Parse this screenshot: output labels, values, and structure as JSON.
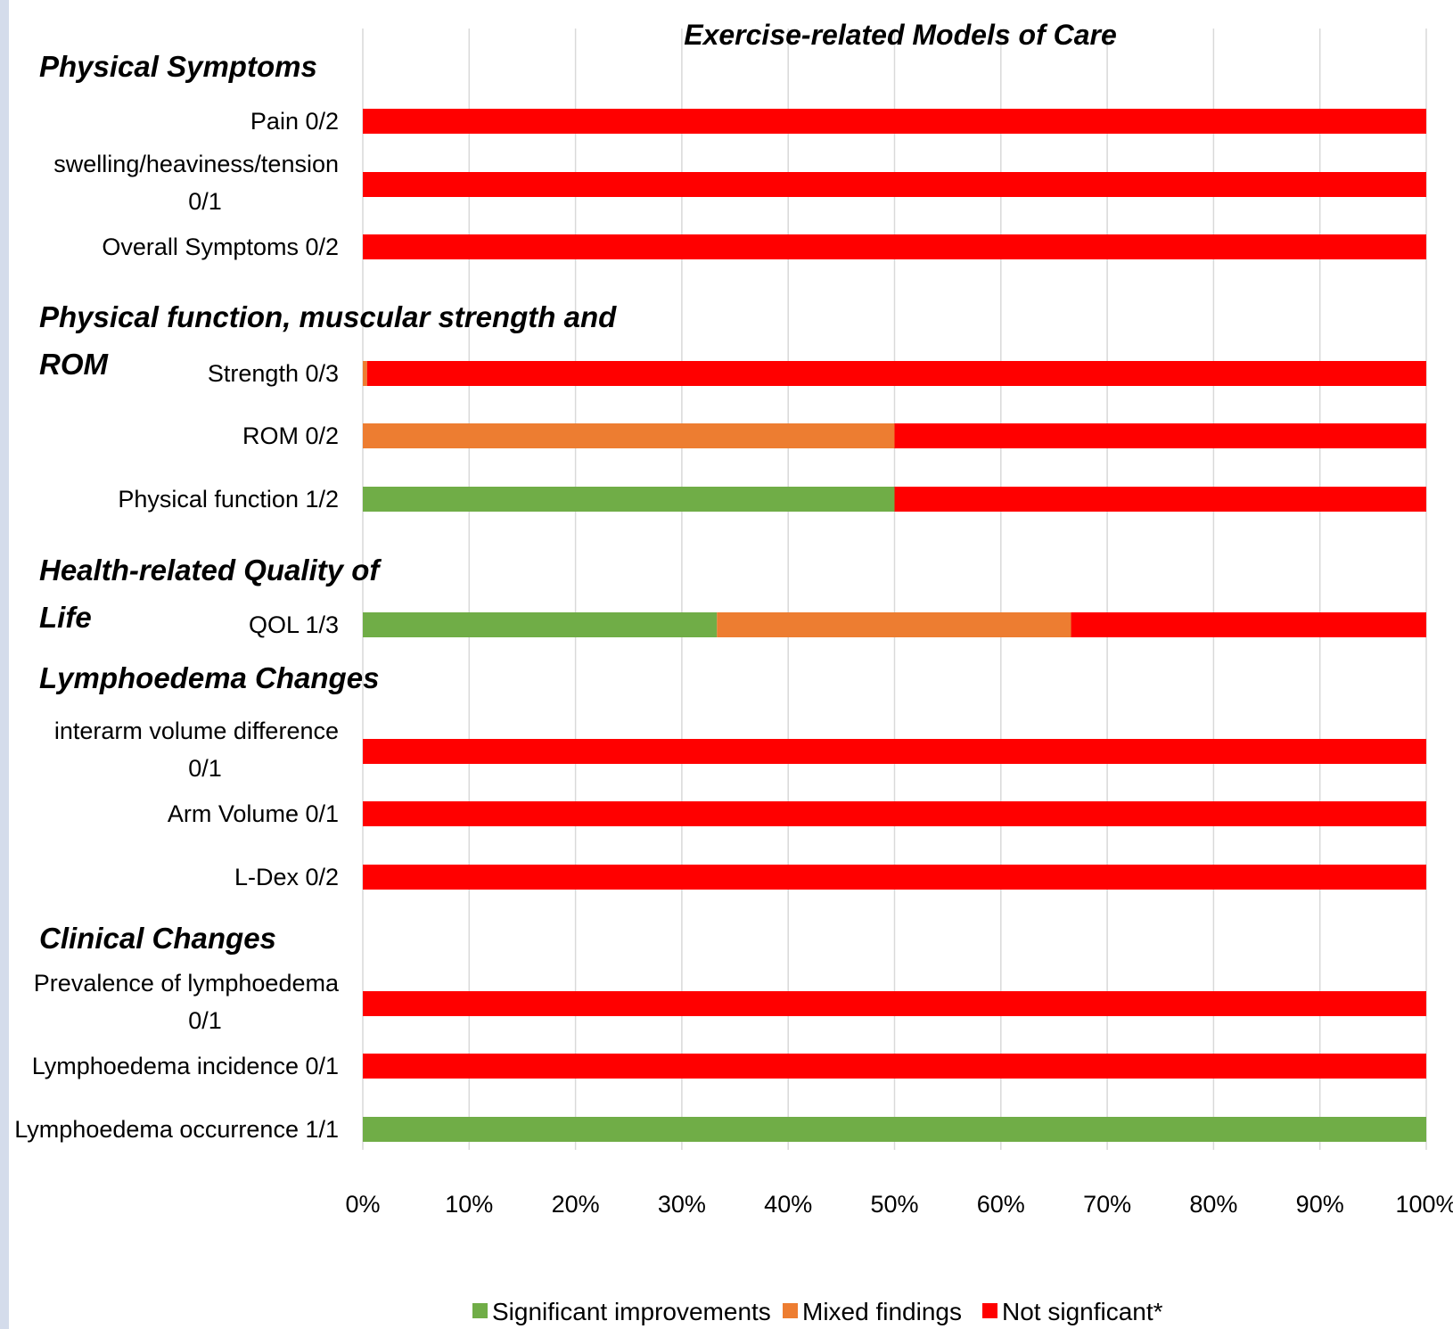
{
  "chart_data": {
    "type": "bar",
    "orientation": "horizontal",
    "stacked": "percent",
    "title": "Exercise-related Models of Care",
    "xlim": [
      0,
      100
    ],
    "x_ticks": [
      "0%",
      "10%",
      "20%",
      "30%",
      "40%",
      "50%",
      "60%",
      "70%",
      "80%",
      "90%",
      "100%"
    ],
    "grid": true,
    "legend_position": "bottom",
    "colors": {
      "significant": "#70ad47",
      "mixed": "#ed7d31",
      "not_significant": "#ff0000"
    },
    "groups": [
      {
        "label": [
          "Physical Symptoms"
        ]
      },
      {
        "label": [
          "Physical function, muscular strength and",
          "ROM"
        ]
      },
      {
        "label": [
          "Health-related Quality of",
          "Life"
        ]
      },
      {
        "label": [
          "Lymphoedema Changes"
        ]
      },
      {
        "label": [
          "Clinical Changes"
        ]
      }
    ],
    "categories": [
      {
        "label": [
          "Pain 0/2"
        ],
        "group": 0
      },
      {
        "label": [
          "swelling/heaviness/tension",
          "0/1"
        ],
        "group": 0
      },
      {
        "label": [
          "Overall Symptoms 0/2"
        ],
        "group": 0
      },
      {
        "label": [
          "Strength 0/3"
        ],
        "group": 1
      },
      {
        "label": [
          "ROM 0/2"
        ],
        "group": 1
      },
      {
        "label": [
          "Physical function 1/2"
        ],
        "group": 1
      },
      {
        "label": [
          "QOL 1/3"
        ],
        "group": 2
      },
      {
        "label": [
          "interarm volume difference",
          "0/1"
        ],
        "group": 3
      },
      {
        "label": [
          "Arm Volume 0/1"
        ],
        "group": 3
      },
      {
        "label": [
          "L-Dex 0/2"
        ],
        "group": 3
      },
      {
        "label": [
          "Prevalence of lymphoedema",
          "0/1"
        ],
        "group": 4
      },
      {
        "label": [
          "Lymphoedema incidence 0/1"
        ],
        "group": 4
      },
      {
        "label": [
          "Lymphoedema occurrence 1/1"
        ],
        "group": 4
      }
    ],
    "series": [
      {
        "name": "Significant improvements",
        "color": "#70ad47",
        "values": [
          0,
          0,
          0,
          0,
          0,
          50,
          33.3,
          0,
          0,
          0,
          0,
          0,
          100
        ]
      },
      {
        "name": "Mixed findings",
        "color": "#ed7d31",
        "values": [
          0,
          0,
          0,
          0.4,
          50,
          0,
          33.3,
          0,
          0,
          0,
          0,
          0,
          0
        ]
      },
      {
        "name": "Not signficant*",
        "color": "#ff0000",
        "values": [
          100,
          100,
          100,
          99.6,
          50,
          50,
          33.4,
          100,
          100,
          100,
          100,
          100,
          0
        ]
      }
    ]
  }
}
